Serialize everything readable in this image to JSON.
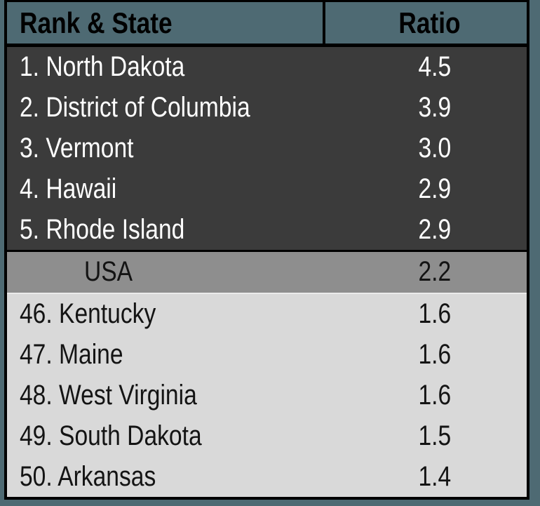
{
  "table": {
    "header": {
      "rank_state_label": "Rank & State",
      "ratio_label": "Ratio"
    },
    "rows": [
      {
        "label": "1. North Dakota",
        "ratio": "4.5",
        "group": "top"
      },
      {
        "label": "2. District of Columbia",
        "ratio": "3.9",
        "group": "top"
      },
      {
        "label": "3. Vermont",
        "ratio": "3.0",
        "group": "top"
      },
      {
        "label": "4. Hawaii",
        "ratio": "2.9",
        "group": "top"
      },
      {
        "label": "5. Rhode Island",
        "ratio": "2.9",
        "group": "top"
      },
      {
        "label": "USA",
        "ratio": "2.2",
        "group": "usa"
      },
      {
        "label": "46. Kentucky",
        "ratio": "1.6",
        "group": "bottom"
      },
      {
        "label": "47. Maine",
        "ratio": "1.6",
        "group": "bottom"
      },
      {
        "label": "48. West Virginia",
        "ratio": "1.6",
        "group": "bottom"
      },
      {
        "label": "49. South Dakota",
        "ratio": "1.5",
        "group": "bottom"
      },
      {
        "label": "50. Arkansas",
        "ratio": "1.4",
        "group": "bottom"
      }
    ]
  },
  "colors": {
    "page_bg": "#4e6a73",
    "header_bg": "#4e6a73",
    "header_text": "#000000",
    "border": "#000000",
    "top_row_bg": "#3b3b3b",
    "top_row_text": "#ffffff",
    "usa_row_bg": "#8e8e8e",
    "usa_separator": "#ebebeb",
    "bottom_row_bg": "#d9d9d9",
    "dark_text": "#141414"
  },
  "chart_data": {
    "type": "table",
    "columns": [
      "Rank & State",
      "Ratio"
    ],
    "rows": [
      [
        "1. North Dakota",
        4.5
      ],
      [
        "2. District of Columbia",
        3.9
      ],
      [
        "3. Vermont",
        3.0
      ],
      [
        "4. Hawaii",
        2.9
      ],
      [
        "5. Rhode Island",
        2.9
      ],
      [
        "USA",
        2.2
      ],
      [
        "46. Kentucky",
        1.6
      ],
      [
        "47. Maine",
        1.6
      ],
      [
        "48. West Virginia",
        1.6
      ],
      [
        "49. South Dakota",
        1.5
      ],
      [
        "50. Arkansas",
        1.4
      ]
    ],
    "layout_hints": {
      "highlight_row": "USA",
      "top_group_rows": 5,
      "bottom_group_rows": 5,
      "ratio_column_alignment": "center"
    }
  }
}
